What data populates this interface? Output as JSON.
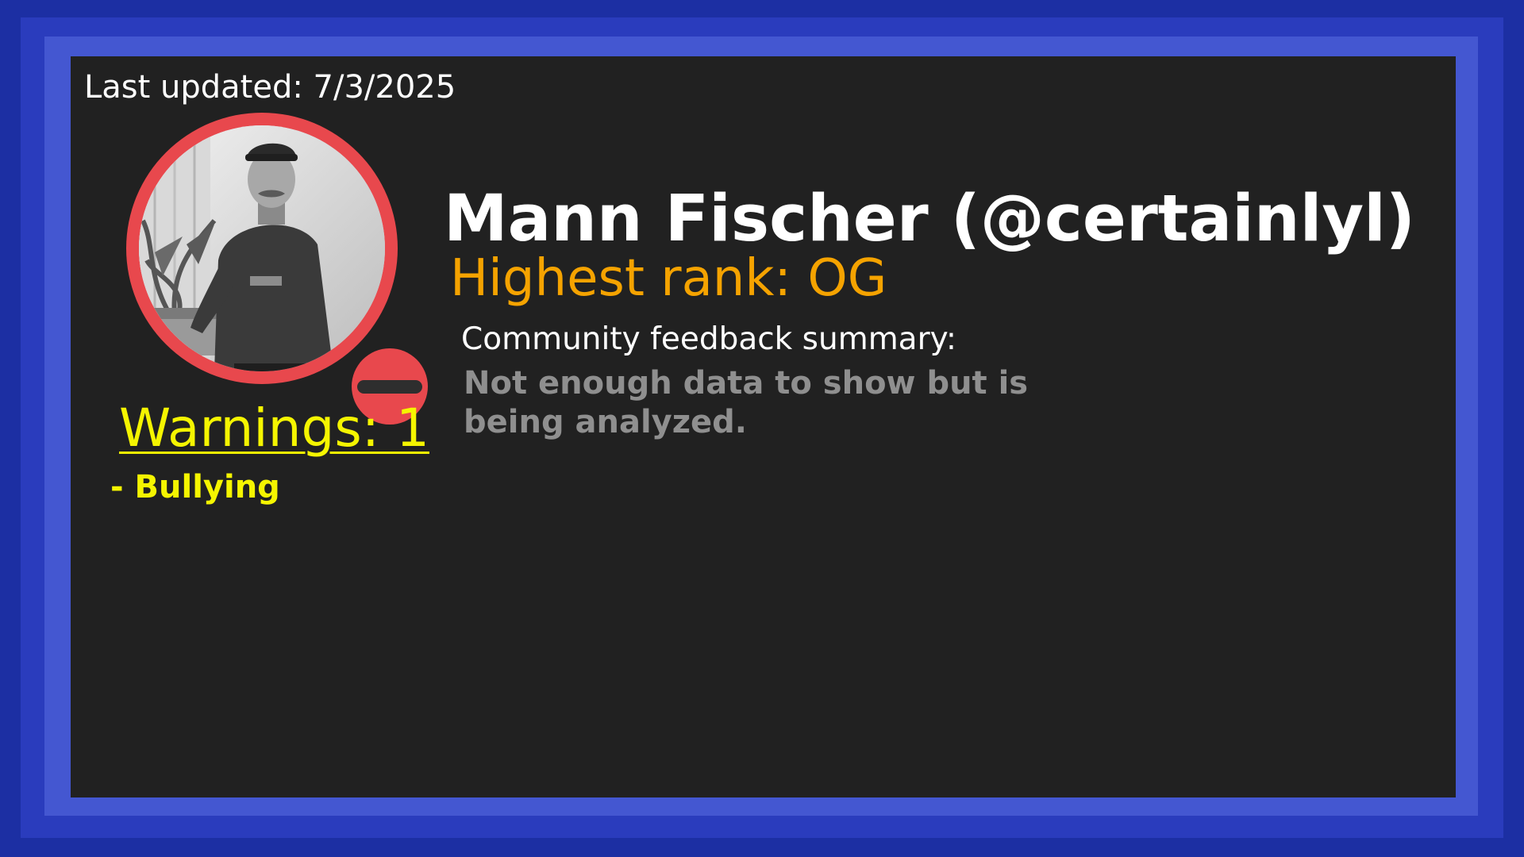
{
  "last_updated": "Last updated: 7/3/2025",
  "profile": {
    "display_name": "Mann Fischer (@certainlyl)",
    "highest_rank": "Highest rank: OG",
    "avatar_description_icon": "profile-photo",
    "status": "do-not-disturb"
  },
  "warnings": {
    "title": "Warnings: 1",
    "items": [
      "- Bullying"
    ]
  },
  "feedback": {
    "heading": "Community feedback summary:",
    "summary": "Not enough data to show but is being analyzed."
  },
  "colors": {
    "frame_outer": "#1c2fa3",
    "frame_inner": "#4457d1",
    "panel_background": "#212121",
    "avatar_ring": "#e8484d",
    "warning_text": "#f5f500",
    "rank_text": "#f5a300",
    "feedback_text": "#8f8f8f"
  }
}
